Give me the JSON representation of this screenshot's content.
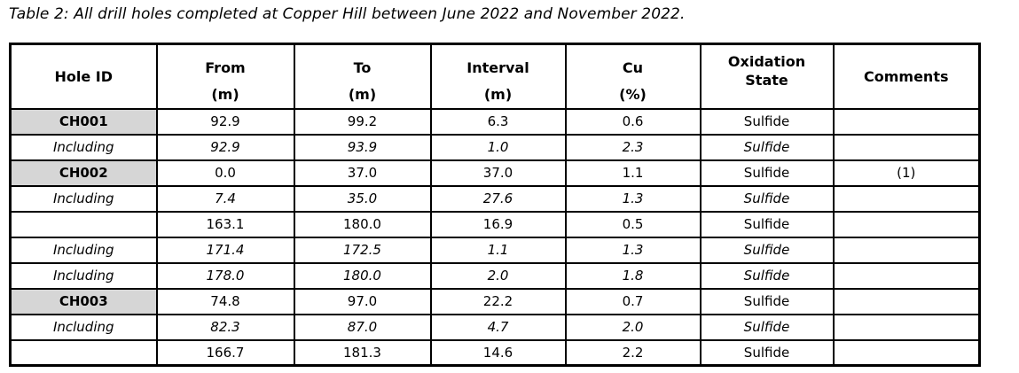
{
  "caption": "Table 2: All drill holes completed at Copper Hill between June 2022 and November 2022.",
  "colors": {
    "hole_id_fill": "#d6d6d6",
    "border": "#000000",
    "background": "#ffffff",
    "text": "#000000"
  },
  "table": {
    "columns": [
      {
        "line1": "Hole ID",
        "line2": ""
      },
      {
        "line1": "From",
        "line2": "(m)"
      },
      {
        "line1": "To",
        "line2": "(m)"
      },
      {
        "line1": "Interval",
        "line2": "(m)"
      },
      {
        "line1": "Cu",
        "line2": "(%)"
      },
      {
        "line1": "Oxidation",
        "line2": "State"
      },
      {
        "line1": "Comments",
        "line2": ""
      }
    ],
    "rows": [
      {
        "row_type": "hole",
        "hole_id": "CH001",
        "from": "92.9",
        "to": "99.2",
        "interval": "6.3",
        "cu": "0.6",
        "oxidation": "Sulfide",
        "comments": ""
      },
      {
        "row_type": "including",
        "hole_id": "Including",
        "from": "92.9",
        "to": "93.9",
        "interval": "1.0",
        "cu": "2.3",
        "oxidation": "Sulfide",
        "comments": ""
      },
      {
        "row_type": "hole",
        "hole_id": "CH002",
        "from": "0.0",
        "to": "37.0",
        "interval": "37.0",
        "cu": "1.1",
        "oxidation": "Sulfide",
        "comments": "(1)"
      },
      {
        "row_type": "including",
        "hole_id": "Including",
        "from": "7.4",
        "to": "35.0",
        "interval": "27.6",
        "cu": "1.3",
        "oxidation": "Sulfide",
        "comments": ""
      },
      {
        "row_type": "continued",
        "hole_id": "",
        "from": "163.1",
        "to": "180.0",
        "interval": "16.9",
        "cu": "0.5",
        "oxidation": "Sulfide",
        "comments": ""
      },
      {
        "row_type": "including",
        "hole_id": "Including",
        "from": "171.4",
        "to": "172.5",
        "interval": "1.1",
        "cu": "1.3",
        "oxidation": "Sulfide",
        "comments": ""
      },
      {
        "row_type": "including",
        "hole_id": "Including",
        "from": "178.0",
        "to": "180.0",
        "interval": "2.0",
        "cu": "1.8",
        "oxidation": "Sulfide",
        "comments": ""
      },
      {
        "row_type": "hole",
        "hole_id": "CH003",
        "from": "74.8",
        "to": "97.0",
        "interval": "22.2",
        "cu": "0.7",
        "oxidation": "Sulfide",
        "comments": ""
      },
      {
        "row_type": "including",
        "hole_id": "Including",
        "from": "82.3",
        "to": "87.0",
        "interval": "4.7",
        "cu": "2.0",
        "oxidation": "Sulfide",
        "comments": ""
      },
      {
        "row_type": "continued",
        "hole_id": "",
        "from": "166.7",
        "to": "181.3",
        "interval": "14.6",
        "cu": "2.2",
        "oxidation": "Sulfide",
        "comments": ""
      }
    ]
  }
}
